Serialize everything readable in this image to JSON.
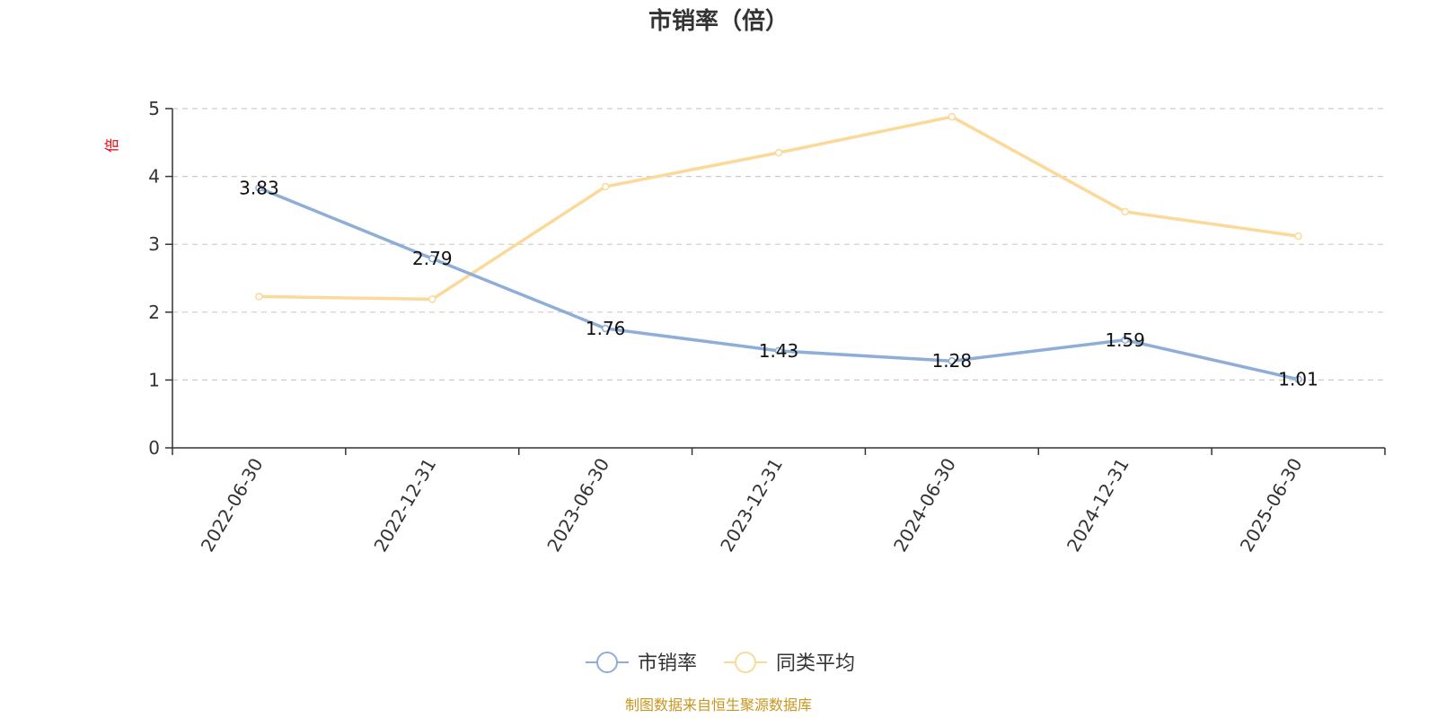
{
  "chart_data": {
    "type": "line",
    "title": "市销率（倍）",
    "xlabel": "",
    "ylabel": "倍",
    "ylim": [
      0,
      5
    ],
    "yticks": [
      0,
      1,
      2,
      3,
      4,
      5
    ],
    "grid": true,
    "legend": "bottom-center",
    "categories": [
      "2022-06-30",
      "2022-12-31",
      "2023-06-30",
      "2023-12-31",
      "2024-06-30",
      "2024-12-31",
      "2025-06-30"
    ],
    "series": [
      {
        "name": "市销率",
        "color": "#8eaed8",
        "values": [
          3.83,
          2.79,
          1.76,
          1.43,
          1.28,
          1.59,
          1.01
        ],
        "data_labels": [
          "3.83",
          "2.79",
          "1.76",
          "1.43",
          "1.28",
          "1.59",
          "1.01"
        ]
      },
      {
        "name": "同类平均",
        "color": "#fbd999",
        "values": [
          2.23,
          2.19,
          3.85,
          4.35,
          4.88,
          3.48,
          3.12
        ]
      }
    ]
  },
  "source_text": "制图数据来自恒生聚源数据库"
}
